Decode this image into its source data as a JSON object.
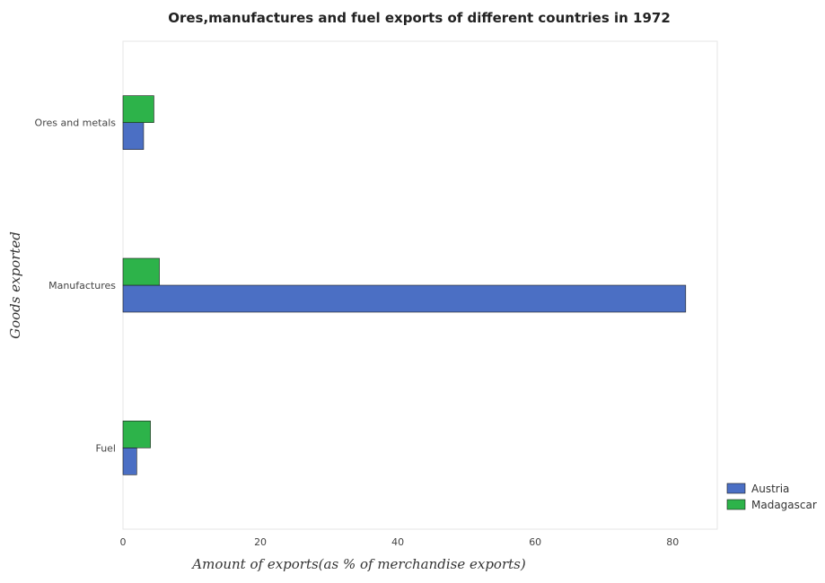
{
  "chart_data": {
    "type": "bar",
    "orientation": "horizontal",
    "title": "Ores,manufactures and fuel exports of different countries in 1972",
    "xlabel": "Amount of exports(as % of merchandise exports)",
    "ylabel": "Goods exported",
    "categories": [
      "Ores and metals",
      "Manufactures",
      "Fuel"
    ],
    "series": [
      {
        "name": "Austria",
        "color": "#4b6fc4",
        "values": [
          3.0,
          81.9,
          2.0
        ]
      },
      {
        "name": "Madagascar",
        "color": "#2db34a",
        "values": [
          4.5,
          5.3,
          4.0
        ]
      }
    ],
    "xlim": [
      0,
      86.5
    ],
    "xticks": [
      0,
      20,
      40,
      60,
      80
    ],
    "grid": false,
    "legend_position": "bottom-right"
  }
}
